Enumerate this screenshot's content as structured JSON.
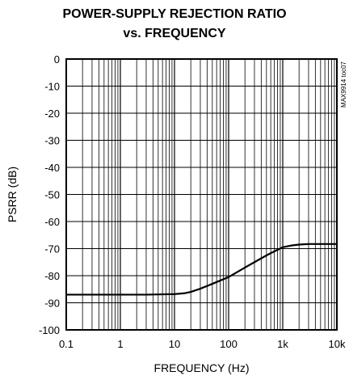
{
  "chart_data": {
    "type": "line",
    "title_lines": [
      "POWER-SUPPLY REJECTION RATIO",
      "vs. FREQUENCY"
    ],
    "xlabel": "FREQUENCY (Hz)",
    "ylabel": "PSRR (dB)",
    "x_scale": "log",
    "xlim": [
      0.1,
      10000
    ],
    "ylim": [
      -100,
      0
    ],
    "x_ticks": [
      0.1,
      1,
      10,
      100,
      1000,
      10000
    ],
    "x_tick_labels": [
      "0.1",
      "1",
      "10",
      "100",
      "1k",
      "10k"
    ],
    "y_ticks": [
      0,
      -10,
      -20,
      -30,
      -40,
      -50,
      -60,
      -70,
      -80,
      -90,
      -100
    ],
    "y_tick_labels": [
      "0",
      "-10",
      "-20",
      "-30",
      "-40",
      "-50",
      "-60",
      "-70",
      "-80",
      "-90",
      "-100"
    ],
    "grid": true,
    "annotation": "MAX9914 toc07",
    "series": [
      {
        "color": "#000000",
        "x": [
          0.1,
          0.3,
          1,
          3,
          10,
          15,
          20,
          30,
          50,
          100,
          200,
          300,
          500,
          700,
          1000,
          1500,
          2000,
          3000,
          5000,
          10000
        ],
        "y": [
          -87,
          -87,
          -87,
          -87,
          -86.8,
          -86.5,
          -86,
          -84.8,
          -83,
          -80.5,
          -77,
          -75,
          -72.5,
          -71,
          -69.5,
          -68.8,
          -68.5,
          -68.3,
          -68.3,
          -68.3
        ]
      }
    ]
  }
}
